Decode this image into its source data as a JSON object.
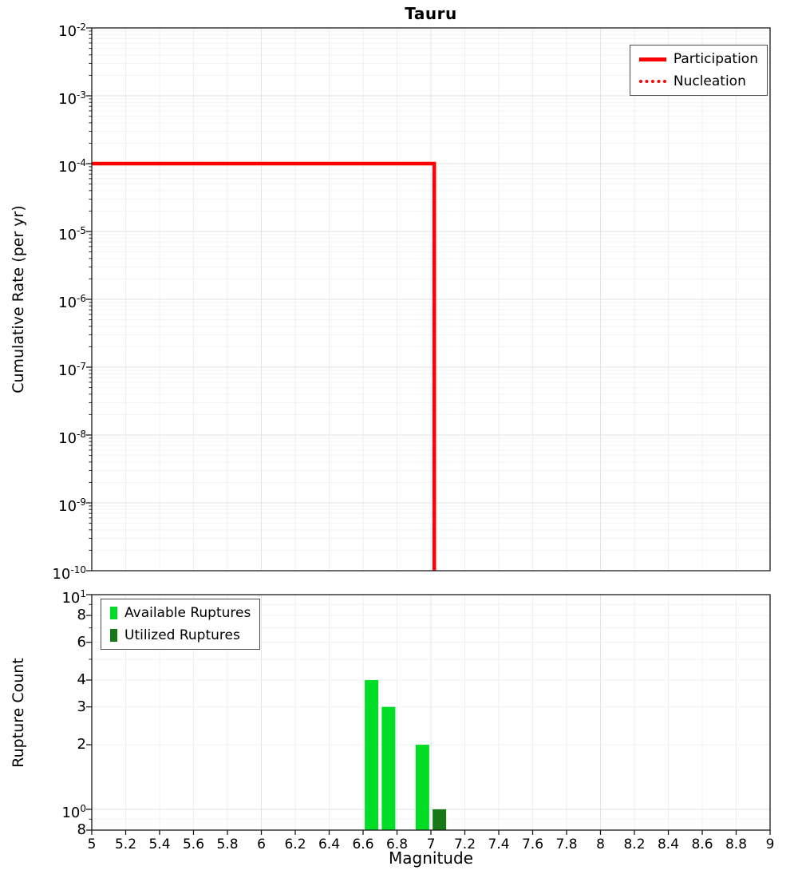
{
  "title": "Tauru",
  "axes": {
    "top_ylabel": "Cumulative Rate (per yr)",
    "bottom_ylabel": "Rupture Count",
    "xlabel": "Magnitude"
  },
  "colors": {
    "participation": "#ff0000",
    "nucleation": "#ff0000",
    "available": "#00dd26",
    "utilized": "#187818"
  },
  "legend_top": {
    "items": [
      {
        "label": "Participation",
        "style": "solid",
        "color": "#ff0000"
      },
      {
        "label": "Nucleation",
        "style": "dotted",
        "color": "#ff0000"
      }
    ]
  },
  "legend_bottom": {
    "items": [
      {
        "label": "Available Ruptures",
        "color": "#00dd26"
      },
      {
        "label": "Utilized Ruptures",
        "color": "#187818"
      }
    ]
  },
  "chart_data": [
    {
      "type": "line",
      "title": "Tauru",
      "ylabel": "Cumulative Rate (per yr)",
      "xlabel": "",
      "xlim": [
        5,
        9
      ],
      "yscale": "log",
      "ylim": [
        1e-10,
        0.01
      ],
      "grid": true,
      "legend_position": "top-right",
      "y_tick_exponents": [
        -2,
        -3,
        -4,
        -5,
        -6,
        -7,
        -8,
        -9,
        -10
      ],
      "series": [
        {
          "name": "Participation",
          "color": "#ff0000",
          "line": "solid",
          "width": 4.5,
          "points": [
            [
              5,
              0.0001
            ],
            [
              7.02,
              0.0001
            ],
            [
              7.02,
              1e-10
            ]
          ]
        },
        {
          "name": "Nucleation",
          "color": "#ff0000",
          "line": "dotted",
          "width": 2.6,
          "points": [
            [
              5,
              0.0001
            ],
            [
              7.02,
              0.0001
            ],
            [
              7.02,
              1e-10
            ]
          ]
        }
      ]
    },
    {
      "type": "bar",
      "title": "",
      "ylabel": "Rupture Count",
      "xlabel": "Magnitude",
      "xlim": [
        5,
        9
      ],
      "yscale": "log",
      "ylim": [
        0.8,
        10
      ],
      "grid": true,
      "legend_position": "top-left",
      "bar_width": 0.08,
      "x_tick_labels": [
        "5",
        "5.2",
        "5.4",
        "5.6",
        "5.8",
        "6",
        "6.2",
        "6.4",
        "6.6",
        "6.8",
        "7",
        "7.2",
        "7.4",
        "7.6",
        "7.8",
        "8",
        "8.2",
        "8.4",
        "8.6",
        "8.8",
        "9"
      ],
      "y_ticks": [
        {
          "value": 10,
          "label": "10",
          "exp": "1"
        },
        {
          "value": 8,
          "label": "8"
        },
        {
          "value": 6,
          "label": "6"
        },
        {
          "value": 4,
          "label": "4"
        },
        {
          "value": 3,
          "label": "3"
        },
        {
          "value": 2,
          "label": "2"
        },
        {
          "value": 1,
          "label": "10",
          "exp": "0"
        },
        {
          "value": 0.8,
          "label": "8"
        }
      ],
      "series": [
        {
          "name": "Available Ruptures",
          "color": "#00dd26",
          "bars": [
            {
              "x": 6.65,
              "count": 4
            },
            {
              "x": 6.75,
              "count": 3
            },
            {
              "x": 6.95,
              "count": 2
            }
          ]
        },
        {
          "name": "Utilized Ruptures",
          "color": "#187818",
          "bars": [
            {
              "x": 7.05,
              "count": 1
            }
          ]
        }
      ]
    }
  ]
}
